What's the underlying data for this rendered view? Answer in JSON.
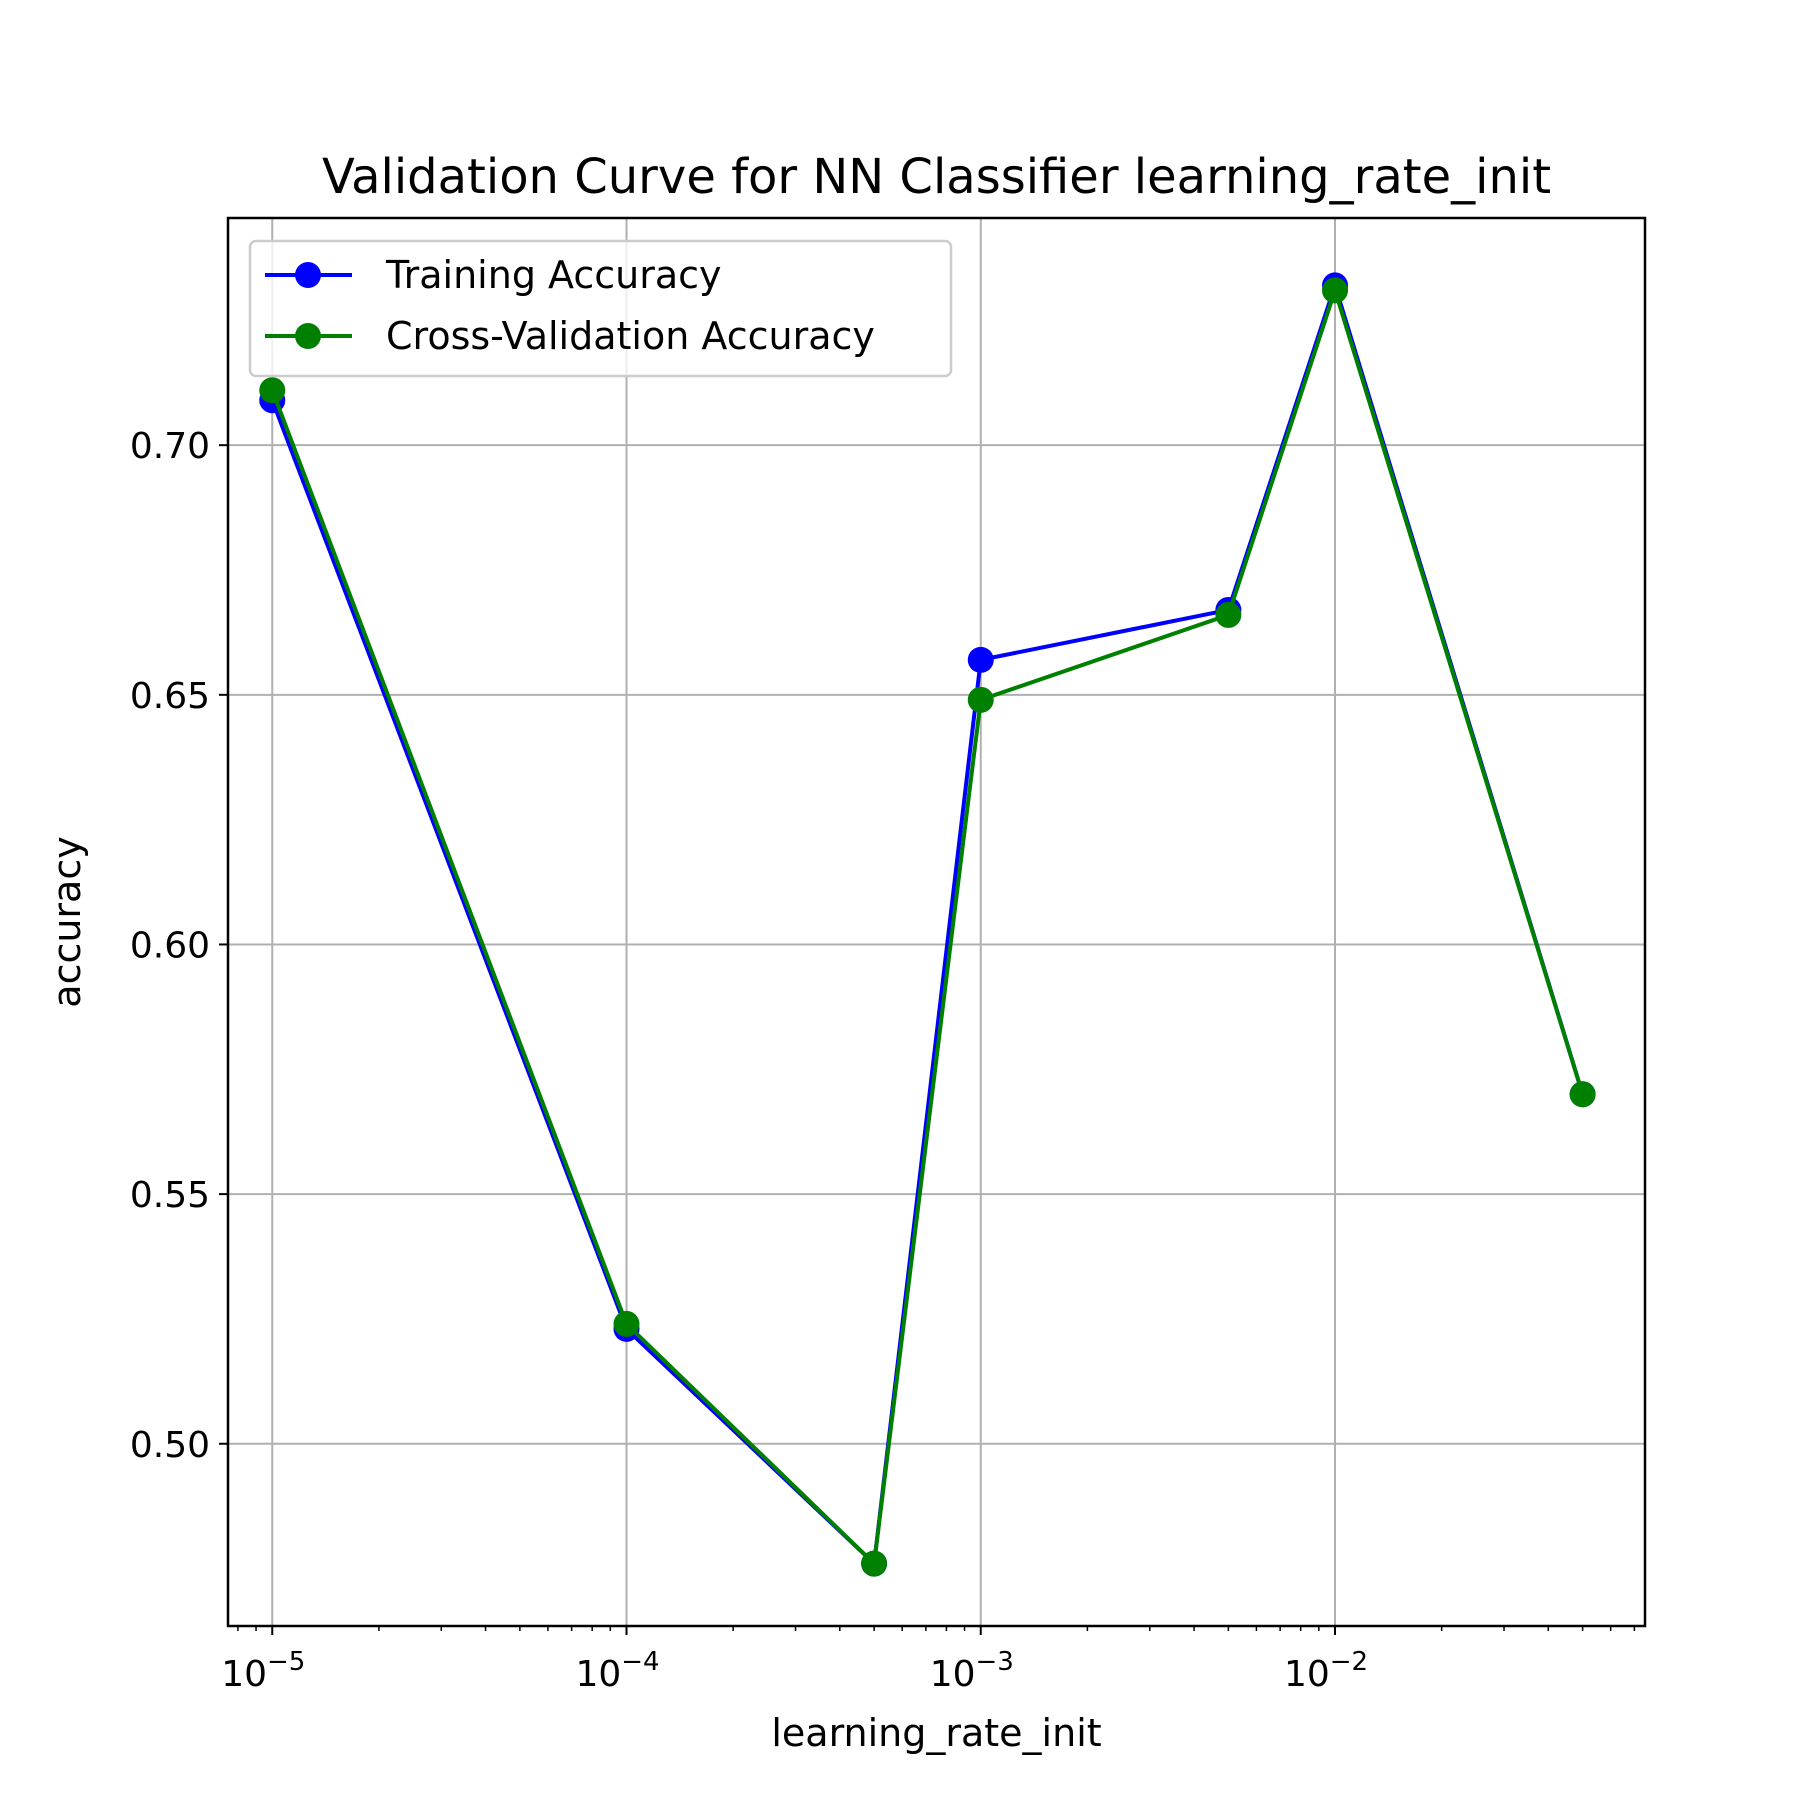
{
  "chart_data": {
    "type": "line",
    "title": "Validation Curve for NN Classifier learning_rate_init",
    "xlabel": "learning_rate_init",
    "ylabel": "accuracy",
    "xscale": "log",
    "xlim": [
      7.5e-06,
      0.075
    ],
    "ylim": [
      0.4635,
      0.7455
    ],
    "x_ticks": [
      {
        "value": 1e-05,
        "base": "10",
        "exp": "−5"
      },
      {
        "value": 0.0001,
        "base": "10",
        "exp": "−4"
      },
      {
        "value": 0.001,
        "base": "10",
        "exp": "−3"
      },
      {
        "value": 0.01,
        "base": "10",
        "exp": "−2"
      }
    ],
    "y_ticks": [
      {
        "value": 0.5,
        "label": "0.50"
      },
      {
        "value": 0.55,
        "label": "0.55"
      },
      {
        "value": 0.6,
        "label": "0.60"
      },
      {
        "value": 0.65,
        "label": "0.65"
      },
      {
        "value": 0.7,
        "label": "0.70"
      }
    ],
    "grid": true,
    "legend_position": "top-left",
    "x": [
      1e-05,
      0.0001,
      0.0005,
      0.001,
      0.005,
      0.01,
      0.05
    ],
    "series": [
      {
        "name": "Training Accuracy",
        "color": "#0000ff",
        "values": [
          0.709,
          0.523,
          0.476,
          0.657,
          0.667,
          0.732,
          0.57
        ]
      },
      {
        "name": "Cross-Validation Accuracy",
        "color": "#008000",
        "values": [
          0.711,
          0.524,
          0.476,
          0.649,
          0.666,
          0.731,
          0.57
        ]
      }
    ]
  }
}
